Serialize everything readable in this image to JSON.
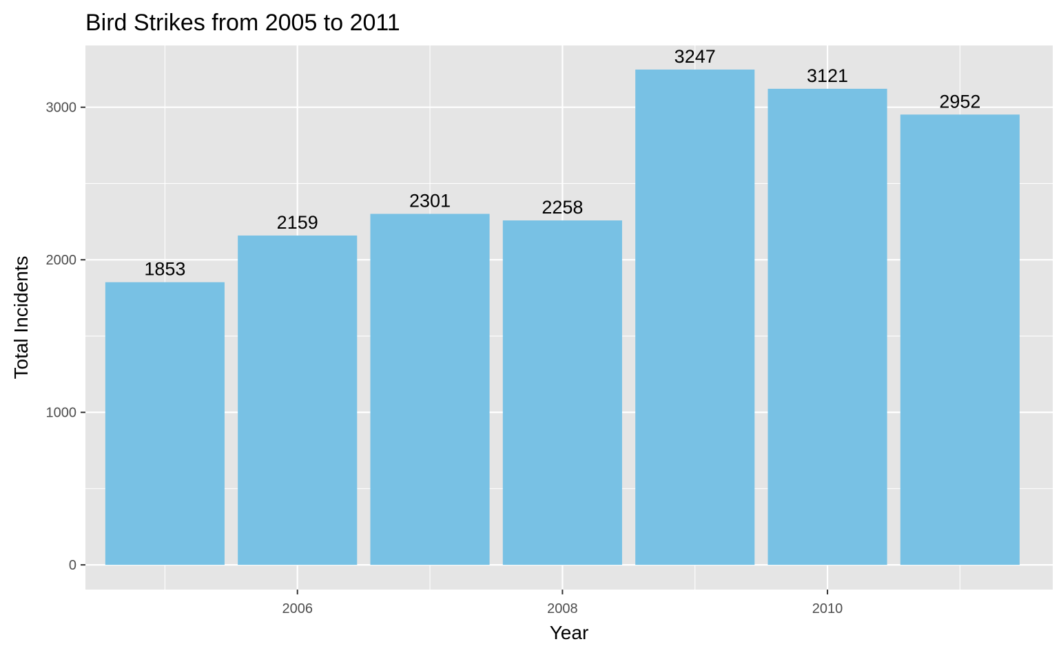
{
  "chart_data": {
    "type": "bar",
    "title": "Bird Strikes from 2005 to 2011",
    "xlabel": "Year",
    "ylabel": "Total Incidents",
    "categories": [
      2005,
      2006,
      2007,
      2008,
      2009,
      2010,
      2011
    ],
    "values": [
      1853,
      2159,
      2301,
      2258,
      3247,
      3121,
      2952
    ],
    "data_labels": [
      "1853",
      "2159",
      "2301",
      "2258",
      "3247",
      "3121",
      "2952"
    ],
    "x_ticks": [
      2006,
      2008,
      2010
    ],
    "x_tick_labels": [
      "2006",
      "2008",
      "2010"
    ],
    "y_ticks": [
      0,
      1000,
      2000,
      3000
    ],
    "y_tick_labels": [
      "0",
      "1000",
      "2000",
      "3000"
    ],
    "xlim": [
      2004.4,
      2011.7
    ],
    "ylim": [
      -162,
      3405
    ],
    "grid": true,
    "legend": "none",
    "colors": {
      "bar": "#78c1e4",
      "panel": "#e5e5e5",
      "grid": "#ffffff"
    }
  }
}
